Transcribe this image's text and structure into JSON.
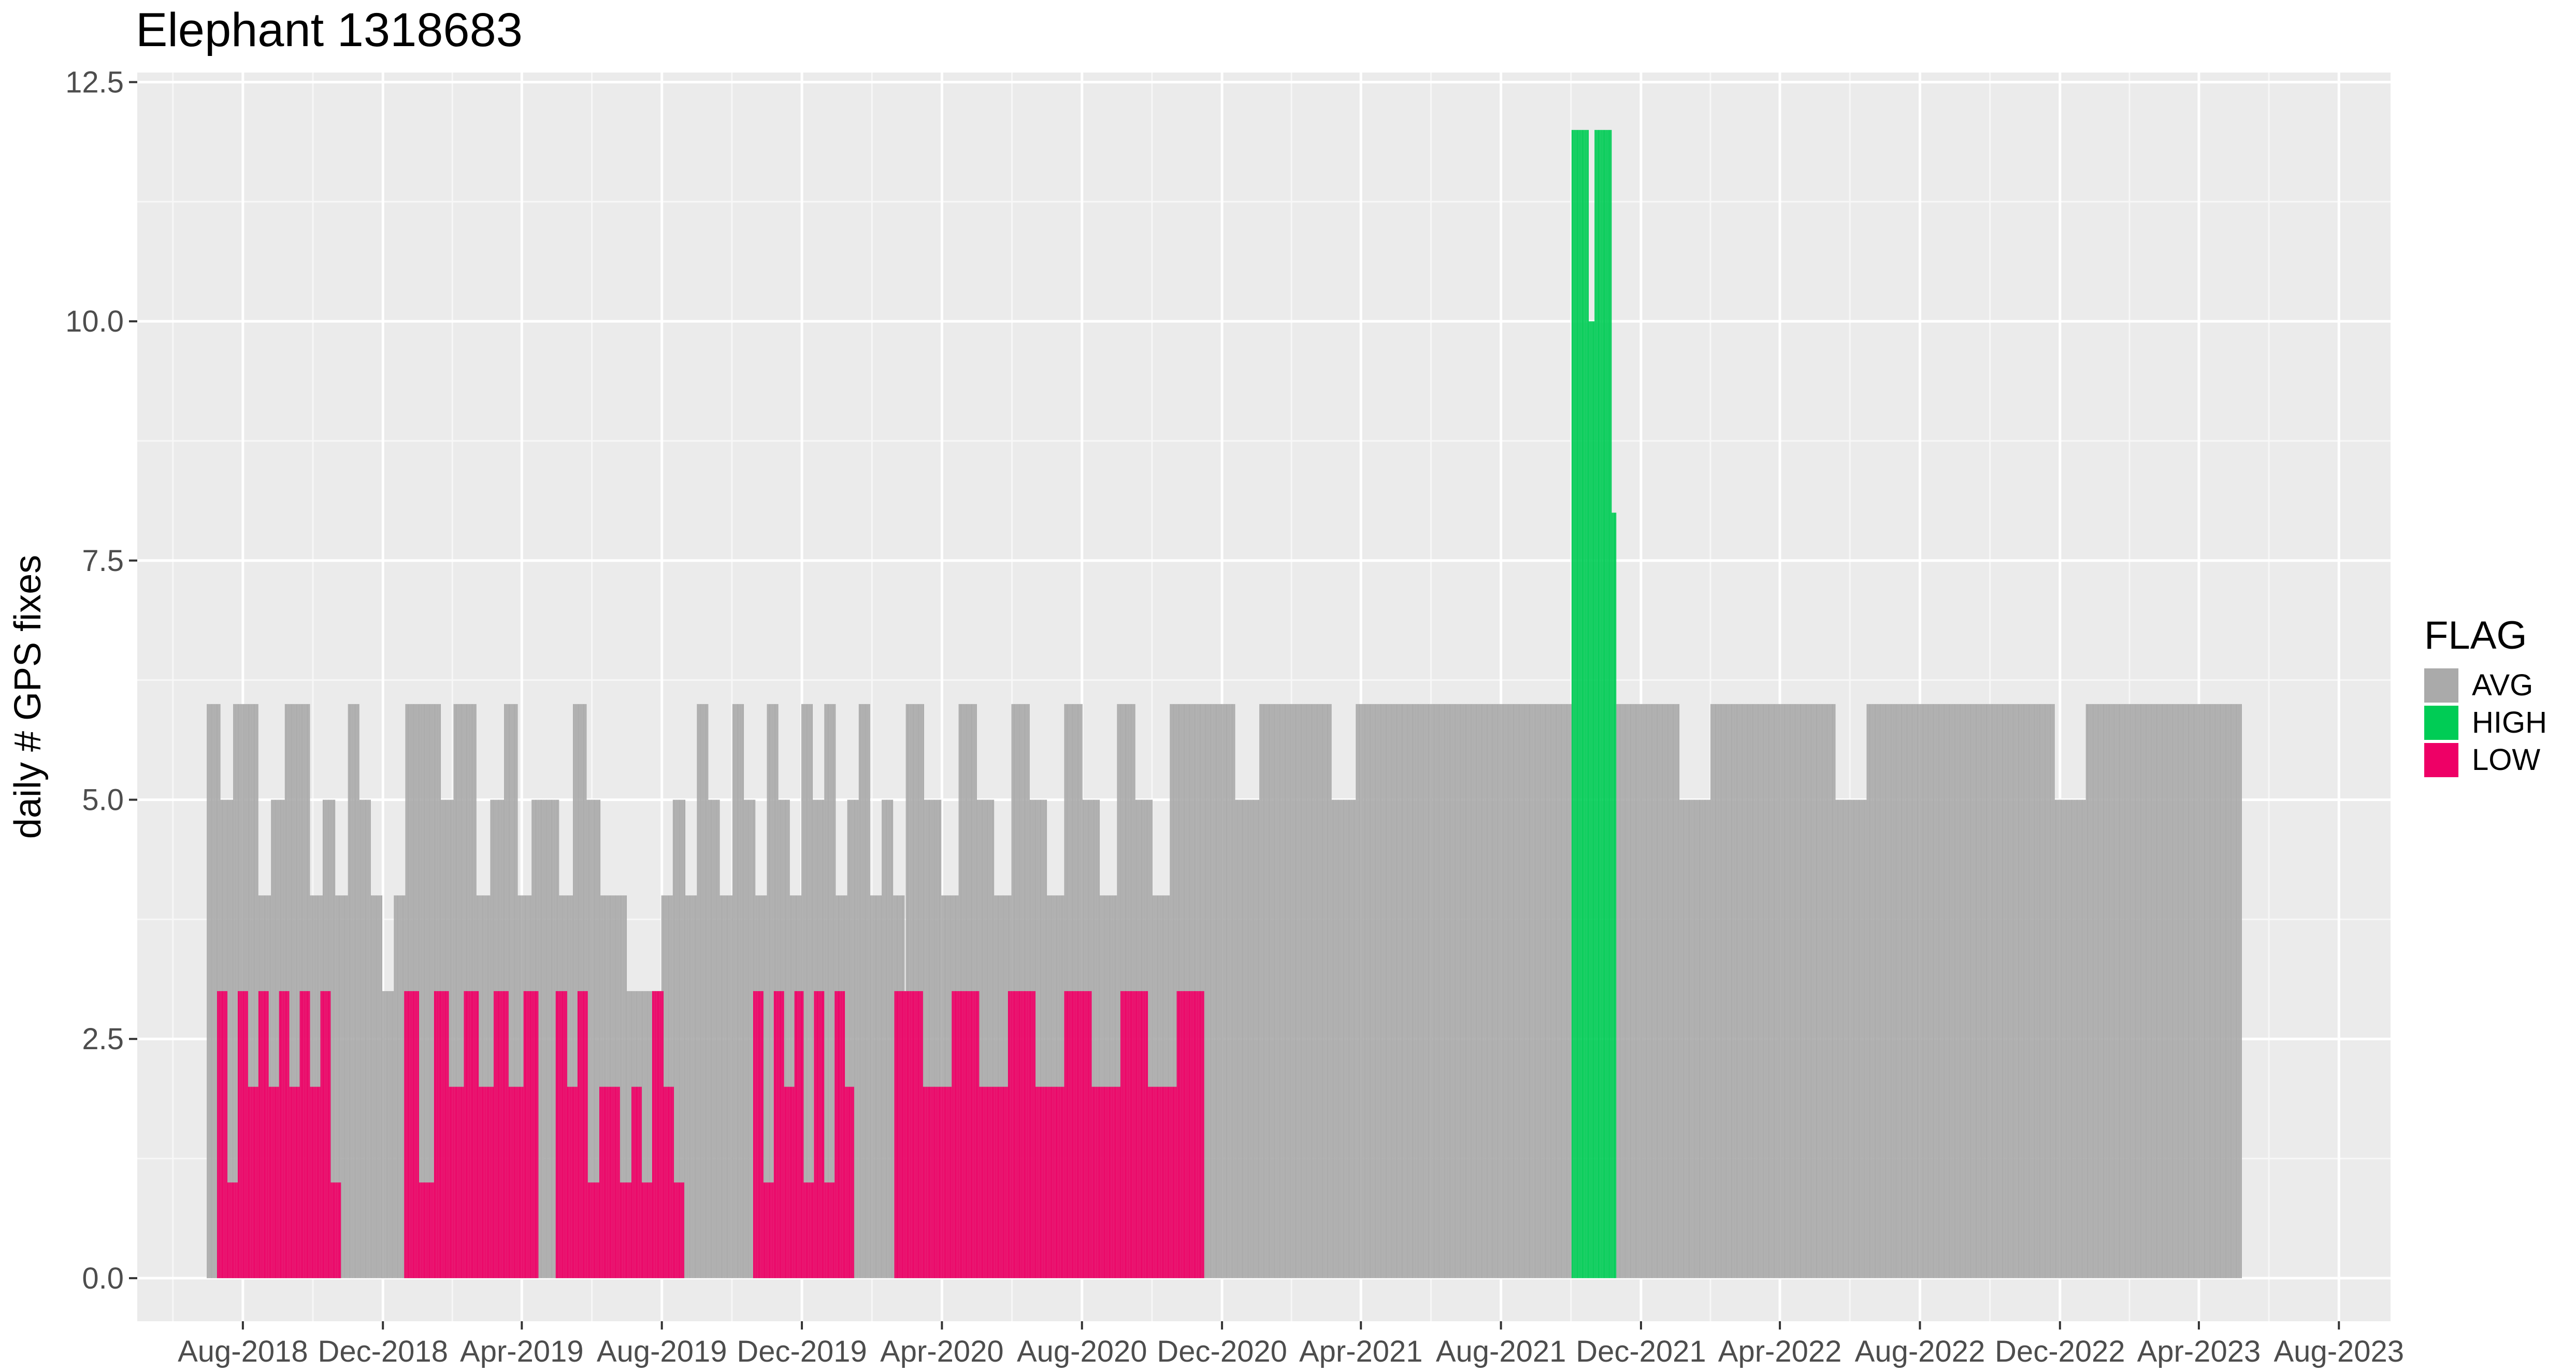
{
  "chart_data": {
    "type": "bar",
    "title": "Elephant 1318683",
    "xlabel": "",
    "ylabel": "daily # GPS fixes",
    "ylim": [
      -0.45,
      12.6
    ],
    "yticks": [
      0.0,
      2.5,
      5.0,
      7.5,
      10.0,
      12.5
    ],
    "ytick_labels": [
      "0.0",
      "2.5",
      "5.0",
      "7.5",
      "10.0",
      "12.5"
    ],
    "xlim": [
      "2018-05-01",
      "2023-09-15"
    ],
    "xticks": [
      "2018-08-01",
      "2018-12-01",
      "2019-04-01",
      "2019-08-01",
      "2019-12-01",
      "2020-04-01",
      "2020-08-01",
      "2020-12-01",
      "2021-04-01",
      "2021-08-01",
      "2021-12-01",
      "2022-04-01",
      "2022-08-01",
      "2022-12-01",
      "2023-04-01",
      "2023-08-01"
    ],
    "xtick_labels": [
      "Aug-2018",
      "Dec-2018",
      "Apr-2019",
      "Aug-2019",
      "Dec-2019",
      "Apr-2020",
      "Aug-2020",
      "Dec-2020",
      "Apr-2021",
      "Aug-2021",
      "Dec-2021",
      "Apr-2022",
      "Aug-2022",
      "Dec-2022",
      "Apr-2023",
      "Aug-2023"
    ],
    "grid": true,
    "legend": {
      "title": "FLAG",
      "position": "right",
      "entries": [
        {
          "name": "AVG",
          "color": "#aaaaaa"
        },
        {
          "name": "HIGH",
          "color": "#00cc55"
        },
        {
          "name": "LOW",
          "color": "#ee0066"
        }
      ]
    },
    "series": [
      {
        "name": "AVG",
        "color": "#aaaaaa",
        "segments": [
          {
            "start": "2018-07-01",
            "end": "2018-10-20",
            "values": [
              6,
              5,
              6,
              6,
              4,
              5,
              6,
              6,
              4,
              5
            ]
          },
          {
            "start": "2018-10-21",
            "end": "2018-12-20",
            "values": [
              4,
              6,
              5,
              4,
              3,
              4
            ]
          },
          {
            "start": "2018-12-21",
            "end": "2019-02-20",
            "values": [
              6,
              6,
              6,
              5,
              6,
              6
            ]
          },
          {
            "start": "2019-02-21",
            "end": "2019-06-20",
            "values": [
              4,
              5,
              6,
              4,
              5,
              5,
              4,
              6,
              5,
              4
            ]
          },
          {
            "start": "2019-06-21",
            "end": "2019-08-10",
            "values": [
              4,
              3,
              3,
              3,
              4
            ]
          },
          {
            "start": "2019-08-11",
            "end": "2019-10-31",
            "values": [
              5,
              4,
              6,
              5,
              4,
              6,
              5,
              4
            ]
          },
          {
            "start": "2019-11-01",
            "end": "2020-02-28",
            "values": [
              6,
              5,
              4,
              6,
              5,
              6,
              4,
              5,
              6,
              4,
              5,
              4
            ]
          },
          {
            "start": "2020-03-01",
            "end": "2020-10-31",
            "values": [
              6,
              5,
              4,
              6,
              5,
              4,
              6,
              5,
              4,
              6,
              5,
              4,
              6,
              5,
              4,
              6
            ]
          },
          {
            "start": "2020-11-01",
            "end": "2021-10-01",
            "values": [
              6,
              6,
              5,
              6,
              6,
              6,
              5,
              6,
              6,
              6,
              6,
              6,
              6,
              6,
              6,
              6
            ]
          },
          {
            "start": "2021-11-10",
            "end": "2023-05-08",
            "values": [
              6,
              6,
              5,
              6,
              6,
              6,
              6,
              5,
              6,
              6,
              6,
              6,
              6,
              6,
              5,
              6,
              6,
              6,
              6,
              6
            ]
          }
        ]
      },
      {
        "name": "HIGH",
        "color": "#00cc55",
        "segments": [
          {
            "start": "2021-10-02",
            "end": "2021-11-09",
            "values": [
              12,
              12,
              12,
              10,
              12,
              12,
              12,
              8
            ]
          }
        ]
      },
      {
        "name": "LOW",
        "color": "#ee0066",
        "segments": [
          {
            "start": "2018-07-10",
            "end": "2018-10-25",
            "values": [
              3,
              1,
              3,
              2,
              3,
              2,
              3,
              2,
              3,
              2,
              3,
              1
            ]
          },
          {
            "start": "2018-12-20",
            "end": "2019-04-15",
            "values": [
              3,
              1,
              3,
              2,
              3,
              2,
              3,
              2,
              3
            ]
          },
          {
            "start": "2019-05-01",
            "end": "2019-08-20",
            "values": [
              3,
              2,
              3,
              1,
              2,
              2,
              1,
              2,
              1,
              3,
              2,
              1
            ]
          },
          {
            "start": "2019-10-20",
            "end": "2020-01-15",
            "values": [
              3,
              1,
              3,
              2,
              3,
              1,
              3,
              1,
              3,
              2
            ]
          },
          {
            "start": "2020-02-20",
            "end": "2020-11-15",
            "values": [
              3,
              2,
              3,
              2,
              3,
              2,
              3,
              2,
              3,
              2,
              3
            ]
          }
        ]
      }
    ]
  }
}
